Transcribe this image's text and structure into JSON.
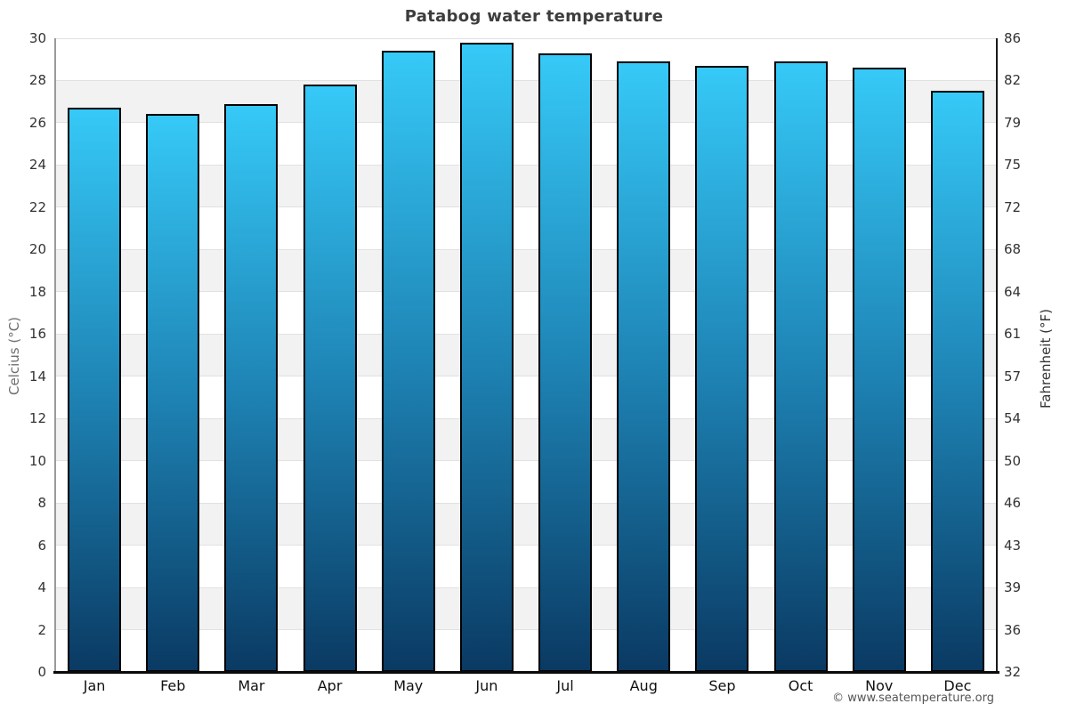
{
  "title": "Patabog water temperature",
  "footer": {
    "attribution": "© www.seatemperature.org"
  },
  "axes": {
    "left_label": "Celcius (°C)",
    "right_label": "Fahrenheit (°F)"
  },
  "chart_data": {
    "type": "bar",
    "title": "Patabog water temperature",
    "categories": [
      "Jan",
      "Feb",
      "Mar",
      "Apr",
      "May",
      "Jun",
      "Jul",
      "Aug",
      "Sep",
      "Oct",
      "Nov",
      "Dec"
    ],
    "values": [
      26.7,
      26.4,
      26.9,
      27.8,
      29.4,
      29.8,
      29.3,
      28.9,
      28.7,
      28.9,
      28.6,
      27.5
    ],
    "value_unit": "°C",
    "xlabel": "",
    "ylabel_left": "Celcius (°C)",
    "ylabel_right": "Fahrenheit (°F)",
    "ylim_celsius": [
      0,
      30
    ],
    "yticks_celsius": [
      30,
      28,
      26,
      24,
      22,
      20,
      18,
      16,
      14,
      12,
      10,
      8,
      6,
      4,
      2,
      0
    ],
    "yticks_fahrenheit": [
      86,
      82,
      79,
      75,
      72,
      68,
      64,
      61,
      57,
      54,
      50,
      46,
      43,
      39,
      36,
      32
    ],
    "grid": true,
    "legend": "none",
    "colors": {
      "bar_gradient_top": "#36c9f7",
      "bar_gradient_mid": "#1e84b5",
      "bar_gradient_bottom": "#0a3a63",
      "bar_border": "#000000",
      "band_gray": "#f2f2f2",
      "band_white": "#ffffff",
      "gridline": "#e1e1e1",
      "title_text": "#3d3d3d",
      "tick_text": "#333333"
    }
  }
}
